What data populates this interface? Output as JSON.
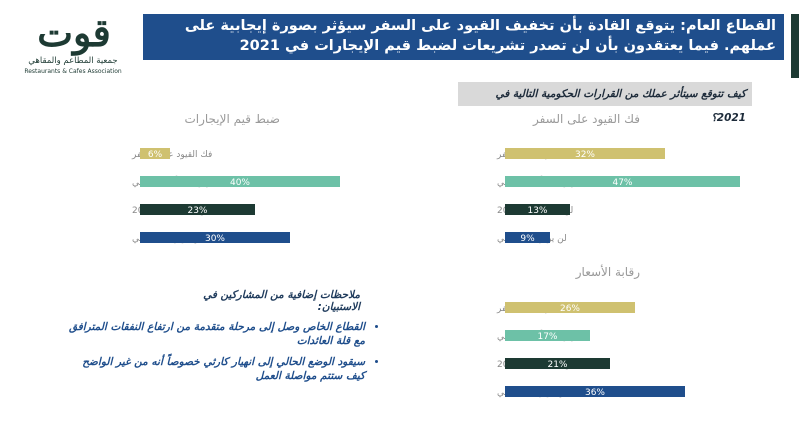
{
  "header": {
    "title": "القطاع العام: يتوقع القادة بأن تخفيف القيود على السفر سيؤثر بصورة إيجابية على عملهم. فيما يعتقدون بأن لن تصدر تشريعات لضبط قيم الإيجارات في 2021",
    "question": "كيف تتوقع سيتأثر عملك من القرارات الحكومية التالية في 2021؟"
  },
  "logo": {
    "mark": "قوت",
    "arabic_name": "جمعية المطاعم والمقاهي",
    "english_name": "Restaurants & Cafes Association"
  },
  "colors": {
    "title_bg": "#1f4e8c",
    "gold": "#cfc170",
    "teal": "#6dc1a7",
    "dark": "#1d3a33",
    "blue": "#1f4e8c"
  },
  "chart_data": [
    {
      "type": "bar",
      "title": "فك القيود على السفر",
      "categories": [
        "فك القيود على السفر",
        "سيؤثر إيجابياً على عملي",
        "لن يحدث عام 2021",
        "لن يؤثر على عملي"
      ],
      "values": [
        32,
        47,
        13,
        9
      ],
      "labels": [
        "32%",
        "47%",
        "13%",
        "9%"
      ],
      "colors": [
        "#cfc170",
        "#6dc1a7",
        "#1d3a33",
        "#1f4e8c"
      ],
      "max": 50
    },
    {
      "type": "bar",
      "title": "ضبط قيم الإيجارات",
      "categories": [
        "فك القيود على السفر",
        "سيؤثر إيجابياً على عملي",
        "لن يحدث عام 2021",
        "لن يؤثر على عملي"
      ],
      "values": [
        6,
        40,
        23,
        30
      ],
      "labels": [
        "6%",
        "40%",
        "23%",
        "30%"
      ],
      "colors": [
        "#cfc170",
        "#6dc1a7",
        "#1d3a33",
        "#1f4e8c"
      ],
      "max": 50
    },
    {
      "type": "bar",
      "title": "رقابة الأسعار",
      "categories": [
        "فك القيود على السفر",
        "سيؤثر إيجابياً على عملي",
        "لن يحدث عام 2021",
        "لن يؤثر على عملي"
      ],
      "values": [
        26,
        17,
        21,
        36
      ],
      "labels": [
        "26%",
        "17%",
        "21%",
        "36%"
      ],
      "colors": [
        "#cfc170",
        "#6dc1a7",
        "#1d3a33",
        "#1f4e8c"
      ],
      "max": 50
    }
  ],
  "notes": {
    "title": "ملاحظات إضافية من المشاركين في الاستبيان:",
    "items": [
      "القطاع الخاص وصل إلى مرحلة متقدمة من ارتفاع النفقات المترافق مع قلة العائدات",
      "سيقود الوضع الحالي إلى انهيار كارثي خصوصاً أنه من غير الواضح كيف ستتم مواصلة العمل"
    ]
  }
}
